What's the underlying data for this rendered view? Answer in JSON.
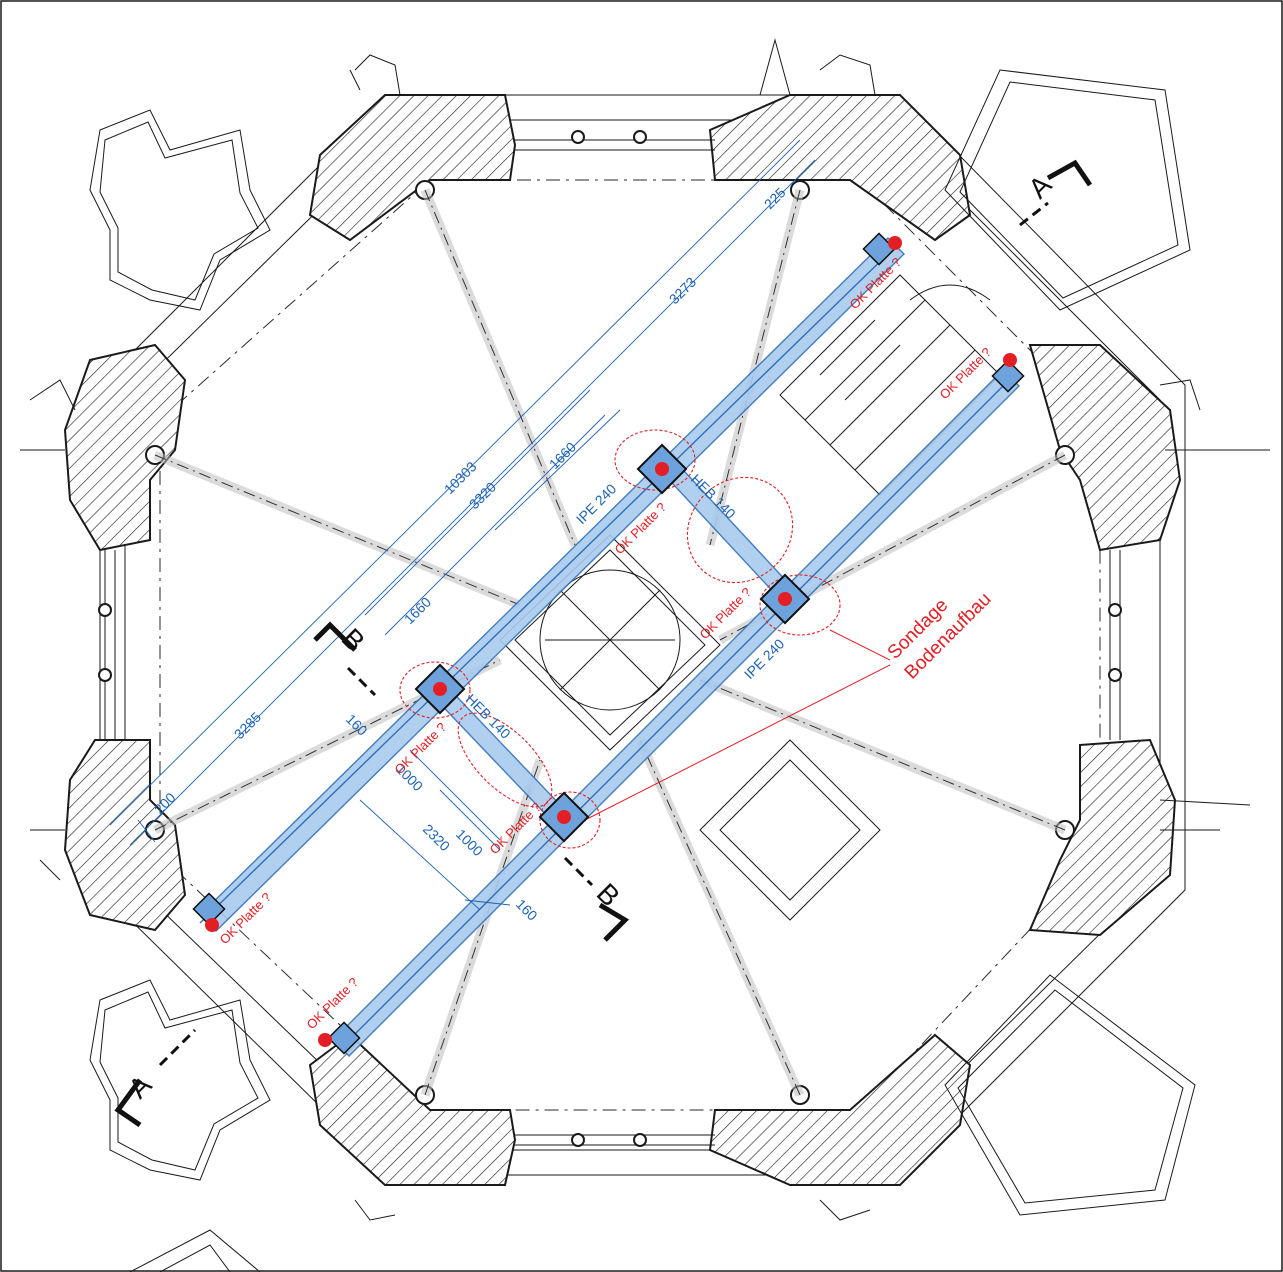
{
  "drawing": {
    "colors": {
      "steel": "#2f6fb8",
      "annotation": "#e31e24",
      "line": "#1a1a1a",
      "background": "#ffffff"
    },
    "dimensions": {
      "overall": "10303",
      "segment_top": "3273",
      "segment_mid": "3320",
      "segment_bottom": "3285",
      "end_top": "225",
      "end_bottom": "200",
      "half_a": "1660",
      "half_b": "1660",
      "cross": "2320",
      "cross_a": "1000",
      "cross_b": "1000",
      "small_a": "160",
      "small_b": "160"
    },
    "beams": {
      "ipe_top": "IPE 240",
      "ipe_right": "IPE 240",
      "heb_top": "HEB 140",
      "heb_bottom": "HEB 140"
    },
    "notes": {
      "ok_platte": "OK Platte ?",
      "sondage_line1": "Sondage",
      "sondage_line2": "Bodenaufbau"
    },
    "sections": {
      "a_top": "A",
      "a_bottom": "A",
      "b_top": "B",
      "b_bottom": "B"
    }
  }
}
